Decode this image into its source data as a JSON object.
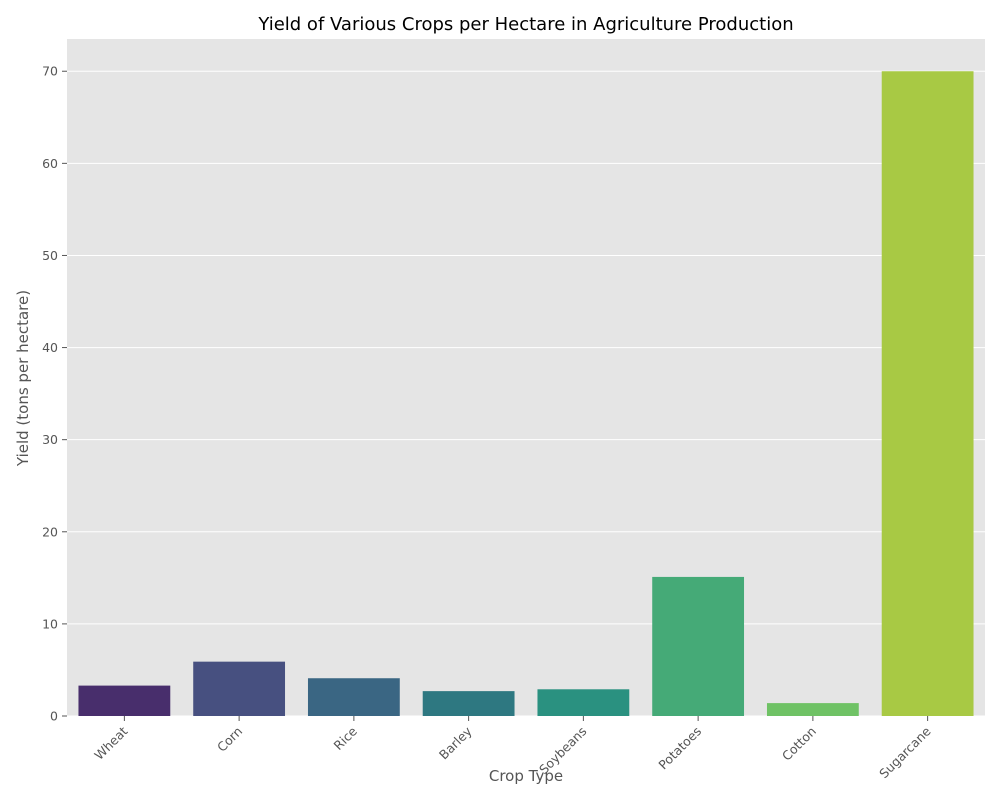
{
  "chart_data": {
    "type": "bar",
    "title": "Yield of Various Crops per Hectare in Agriculture Production",
    "xlabel": "Crop Type",
    "ylabel": "Yield (tons per hectare)",
    "categories": [
      "Wheat",
      "Corn",
      "Rice",
      "Barley",
      "Soybeans",
      "Potatoes",
      "Cotton",
      "Sugarcane"
    ],
    "values": [
      3.3,
      5.9,
      4.1,
      2.7,
      2.9,
      15.1,
      1.4,
      70.0
    ],
    "colors": [
      "#482e6c",
      "#475080",
      "#3a6683",
      "#2e7881",
      "#2a9180",
      "#45aa77",
      "#6fc265",
      "#a8c944"
    ],
    "ylim": [
      0,
      73.5
    ],
    "yticks": [
      0,
      10,
      20,
      30,
      40,
      50,
      60,
      70
    ],
    "grid": true,
    "background": "#e5e5e5",
    "grid_color": "#ffffff",
    "tick_rotation": 45
  }
}
